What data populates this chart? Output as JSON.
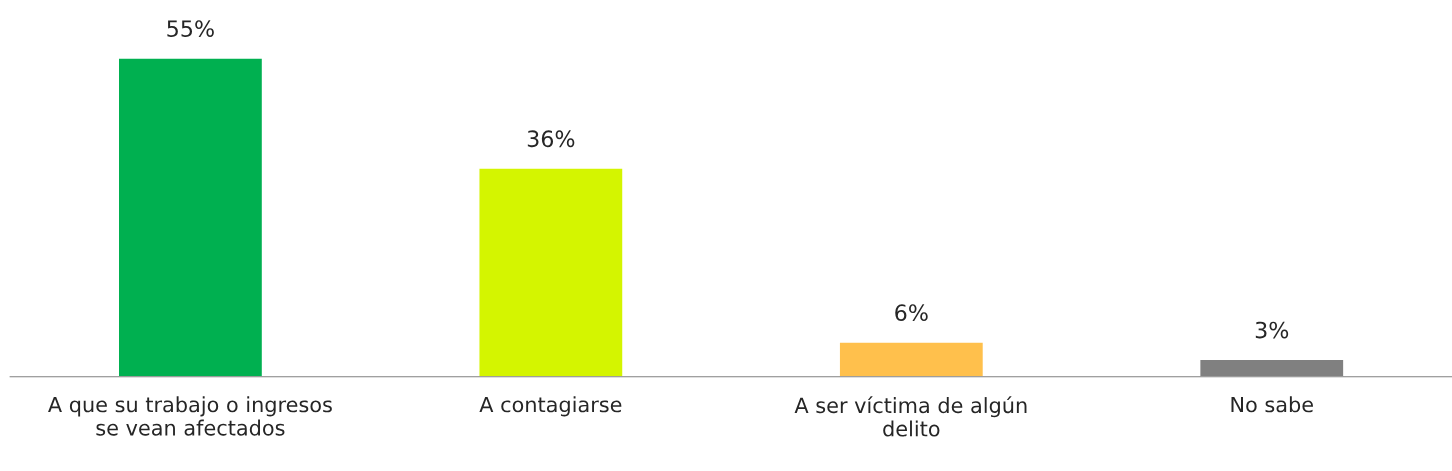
{
  "chart_data": {
    "type": "bar",
    "categories": [
      "A que su trabajo o ingresos\nse vean afectados",
      "A contagiarse",
      "A ser víctima de algún\ndelito",
      "No sabe"
    ],
    "values": [
      55,
      36,
      6,
      3
    ],
    "colors": [
      "#00b050",
      "#d4f500",
      "#ffc04c",
      "#808080"
    ],
    "value_labels": [
      "55%",
      "36%",
      "6%",
      "3%"
    ],
    "grid": false,
    "legend": false
  }
}
